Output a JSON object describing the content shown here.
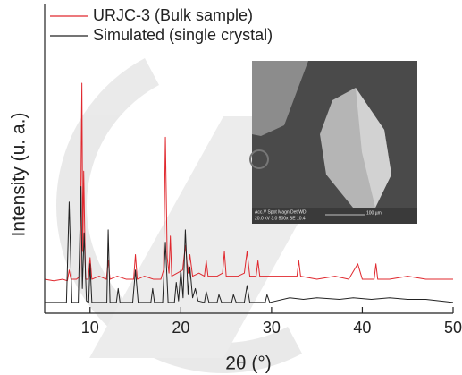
{
  "chart_data": {
    "type": "line",
    "x_label": "2θ (°)",
    "y_label": "Intensity (u. a.)",
    "xlim": [
      5,
      50
    ],
    "xticks": [
      10,
      20,
      30,
      40,
      50
    ],
    "ylim": [
      0,
      100
    ],
    "legend": "top-left",
    "series": [
      {
        "name": "URJC-3 (Bulk sample)",
        "color": "#e0282e",
        "x": [
          5,
          6,
          7,
          7.5,
          7.7,
          7.9,
          8.5,
          8.9,
          9.1,
          9.2,
          9.3,
          9.5,
          9.8,
          10.0,
          10.2,
          11,
          11.8,
          12.0,
          12.2,
          13,
          14,
          14.8,
          15.0,
          15.2,
          16,
          17,
          17.8,
          18.1,
          18.3,
          18.5,
          18.7,
          18.85,
          19.0,
          19.6,
          20.2,
          20.5,
          20.8,
          21.0,
          21.3,
          22.0,
          22.6,
          22.8,
          23.0,
          24.0,
          24.6,
          24.8,
          25.0,
          26.3,
          27.0,
          27.3,
          27.6,
          28.3,
          28.5,
          28.7,
          30,
          31,
          32.8,
          33.0,
          33.2,
          35,
          37,
          38.5,
          39.5,
          40,
          41.3,
          41.5,
          41.7,
          43,
          45,
          47,
          50
        ],
        "values": [
          11,
          10.5,
          11,
          10.5,
          14,
          11,
          11,
          12,
          74.5,
          20,
          46,
          11,
          11,
          18,
          11,
          12,
          11,
          17,
          11,
          12,
          11,
          11,
          19,
          11,
          12,
          11,
          11,
          14,
          57,
          18,
          13,
          25,
          12,
          13,
          14,
          22,
          13,
          19,
          12,
          13,
          12,
          17,
          12,
          12,
          13,
          20,
          12,
          12,
          13,
          20,
          12,
          12,
          17,
          12,
          12,
          12,
          12,
          17,
          12,
          11,
          12,
          11,
          16,
          11,
          11,
          16,
          11,
          11,
          12,
          11,
          11
        ]
      },
      {
        "name": "Simulated (single crystal)",
        "color": "#222222",
        "x": [
          5,
          7.4,
          7.7,
          8.0,
          8.7,
          9.0,
          9.15,
          9.35,
          9.6,
          9.85,
          10.0,
          10.2,
          11.5,
          11.85,
          12.0,
          12.2,
          12.9,
          13.1,
          13.3,
          14.7,
          15.0,
          15.3,
          16.7,
          16.9,
          17.1,
          18.0,
          18.3,
          18.6,
          19.3,
          19.5,
          19.75,
          20.0,
          20.25,
          20.5,
          20.8,
          21.0,
          21.3,
          21.6,
          21.9,
          22.6,
          22.8,
          23.1,
          24.0,
          24.2,
          24.5,
          25.6,
          25.8,
          26.1,
          27.0,
          27.3,
          27.6,
          29.3,
          29.5,
          29.8,
          32,
          33.5,
          35,
          37.5,
          39,
          41,
          43,
          45,
          47,
          50
        ],
        "values": [
          3.5,
          3.5,
          36,
          3.5,
          3.5,
          41,
          8,
          26,
          4,
          3.5,
          16,
          3.5,
          3.5,
          3.5,
          27,
          3.5,
          3.5,
          8,
          3.5,
          3.5,
          14,
          3.5,
          3.5,
          8,
          3.5,
          3.5,
          23,
          3.5,
          3.5,
          10,
          4,
          14,
          5,
          27,
          6,
          15,
          5,
          8,
          4,
          3.5,
          7,
          3.5,
          3.5,
          6,
          3.5,
          3.5,
          6,
          3.5,
          3.5,
          9,
          3.5,
          3.5,
          6,
          3.5,
          5,
          4.5,
          5,
          4.5,
          5,
          4.5,
          5,
          4.5,
          4.5,
          3.5
        ]
      }
    ],
    "inset_labels": [
      "Acc.V  Spot Magn   Det  WD",
      "20.0 kV 3.0  500x   SE  10.4",
      "100 µm"
    ]
  }
}
